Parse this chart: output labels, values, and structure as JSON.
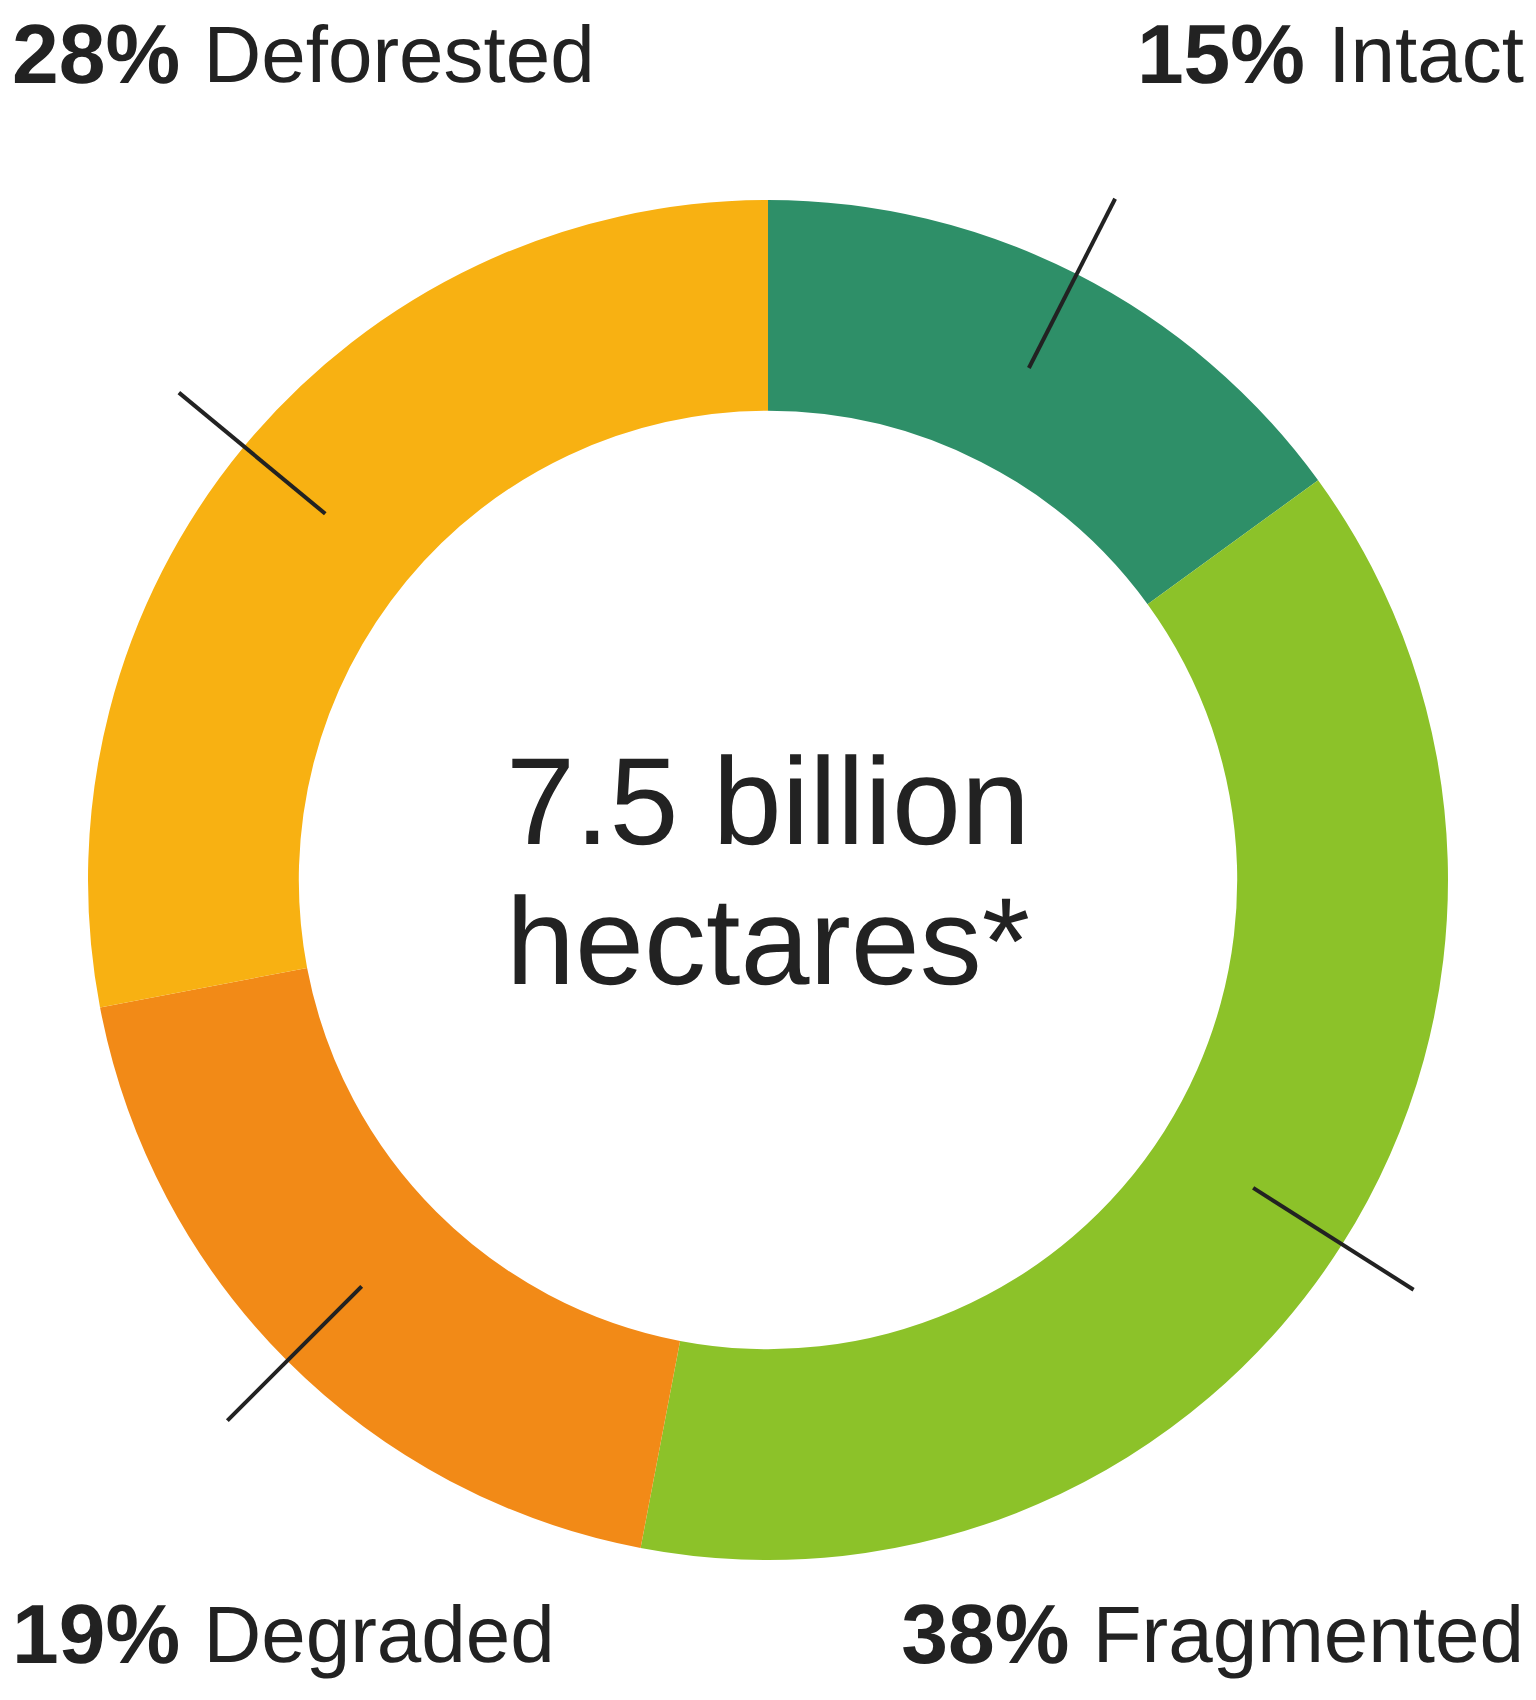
{
  "chart_data": {
    "type": "donut",
    "categories": [
      "Intact",
      "Fragmented",
      "Degraded",
      "Deforested"
    ],
    "values": [
      15,
      38,
      19,
      28
    ],
    "value_labels": [
      "15%",
      "38%",
      "19%",
      "28%"
    ],
    "colors": [
      "#2e8f68",
      "#8cc229",
      "#f28a17",
      "#f8b112"
    ],
    "annotations": [
      "7.5 billion hectares*"
    ],
    "legend": false
  }
}
